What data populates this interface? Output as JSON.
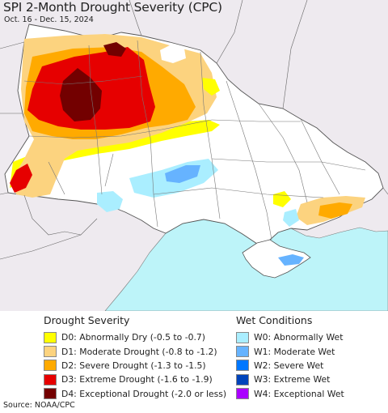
{
  "header": {
    "title": "SPI 2-Month Drought Severity (CPC)",
    "subtitle": "Oct. 16 - Dec. 15, 2024"
  },
  "legend": {
    "drought": {
      "title": "Drought Severity",
      "items": [
        {
          "label": "D0: Abnormally Dry (-0.5 to -0.7)",
          "color": "#ffff00"
        },
        {
          "label": "D1: Moderate Drought (-0.8 to -1.2)",
          "color": "#fcd37f"
        },
        {
          "label": "D2: Severe Drought (-1.3 to -1.5)",
          "color": "#ffaa00"
        },
        {
          "label": "D3: Extreme Drought (-1.6 to -1.9)",
          "color": "#e60000"
        },
        {
          "label": "D4: Exceptional Drought (-2.0 or less)",
          "color": "#730000"
        }
      ]
    },
    "wet": {
      "title": "Wet Conditions",
      "items": [
        {
          "label": "W0: Abnormally Wet",
          "color": "#aaeeff"
        },
        {
          "label": "W1: Moderate Wet",
          "color": "#66b3ff"
        },
        {
          "label": "W2: Severe Wet",
          "color": "#0077ff"
        },
        {
          "label": "W3: Extreme Wet",
          "color": "#0044bb"
        },
        {
          "label": "W4: Exceptional Wet",
          "color": "#aa00ff"
        }
      ]
    }
  },
  "source": "Source: NOAA/CPC",
  "colors": {
    "sea": "#bdf4f9",
    "outside": "#eeeaef",
    "land": "#ffffff"
  }
}
